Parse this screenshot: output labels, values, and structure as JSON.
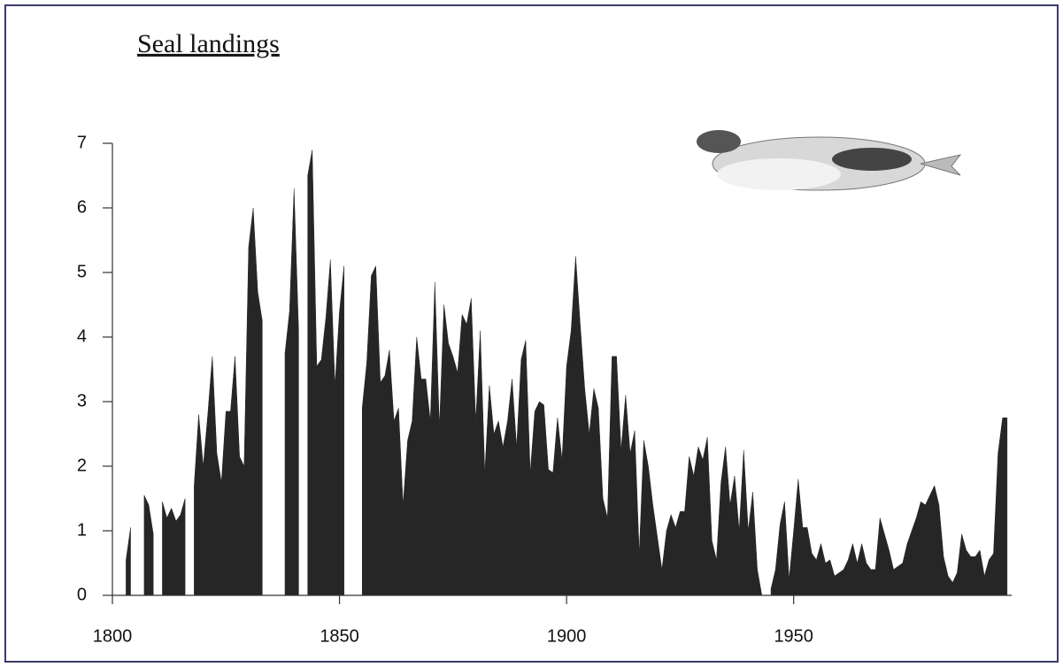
{
  "chart_data": {
    "type": "area",
    "title": "Seal landings",
    "x": [
      1803,
      1804,
      1805,
      1806,
      1807,
      1808,
      1809,
      1810,
      1811,
      1812,
      1813,
      1814,
      1815,
      1816,
      1817,
      1818,
      1819,
      1820,
      1821,
      1822,
      1823,
      1824,
      1825,
      1826,
      1827,
      1828,
      1829,
      1830,
      1831,
      1832,
      1833,
      1834,
      1835,
      1836,
      1837,
      1838,
      1839,
      1840,
      1841,
      1842,
      1843,
      1844,
      1845,
      1846,
      1847,
      1848,
      1849,
      1850,
      1851,
      1852,
      1853,
      1854,
      1855,
      1856,
      1857,
      1858,
      1859,
      1860,
      1861,
      1862,
      1863,
      1864,
      1865,
      1866,
      1867,
      1868,
      1869,
      1870,
      1871,
      1872,
      1873,
      1874,
      1875,
      1876,
      1877,
      1878,
      1879,
      1880,
      1881,
      1882,
      1883,
      1884,
      1885,
      1886,
      1887,
      1888,
      1889,
      1890,
      1891,
      1892,
      1893,
      1894,
      1895,
      1896,
      1897,
      1898,
      1899,
      1900,
      1901,
      1902,
      1903,
      1904,
      1905,
      1906,
      1907,
      1908,
      1909,
      1910,
      1911,
      1912,
      1913,
      1914,
      1915,
      1916,
      1917,
      1918,
      1919,
      1920,
      1921,
      1922,
      1923,
      1924,
      1925,
      1926,
      1927,
      1928,
      1929,
      1930,
      1931,
      1932,
      1933,
      1934,
      1935,
      1936,
      1937,
      1938,
      1939,
      1940,
      1941,
      1942,
      1943,
      1944,
      1945,
      1946,
      1947,
      1948,
      1949,
      1950,
      1951,
      1952,
      1953,
      1954,
      1955,
      1956,
      1957,
      1958,
      1959,
      1960,
      1961,
      1962,
      1963,
      1964,
      1965,
      1966,
      1967,
      1968,
      1969,
      1970,
      1971,
      1972,
      1973,
      1974,
      1975,
      1976,
      1977,
      1978,
      1979,
      1980,
      1981,
      1982,
      1983,
      1984,
      1985,
      1986,
      1987,
      1988,
      1989,
      1990,
      1991,
      1992,
      1993,
      1994,
      1995,
      1996,
      1997
    ],
    "values": [
      0.55,
      1.05,
      null,
      null,
      1.55,
      1.4,
      0.95,
      null,
      1.45,
      1.2,
      1.35,
      1.15,
      1.25,
      1.5,
      null,
      1.7,
      2.8,
      2.0,
      2.8,
      3.7,
      2.2,
      1.75,
      2.85,
      2.85,
      3.7,
      2.15,
      2.0,
      5.4,
      6.0,
      4.7,
      4.25,
      null,
      null,
      null,
      null,
      3.75,
      4.4,
      6.3,
      4.1,
      null,
      6.5,
      6.9,
      3.55,
      3.65,
      4.3,
      5.2,
      3.25,
      4.4,
      5.1,
      null,
      null,
      null,
      2.9,
      3.6,
      4.95,
      5.1,
      3.3,
      3.4,
      3.8,
      2.7,
      2.9,
      1.4,
      2.4,
      2.7,
      4.0,
      3.35,
      3.35,
      2.7,
      4.85,
      2.6,
      4.5,
      3.9,
      3.7,
      3.45,
      4.35,
      4.2,
      4.6,
      2.7,
      4.1,
      1.9,
      3.25,
      2.5,
      2.7,
      2.3,
      2.7,
      3.35,
      2.3,
      3.65,
      3.95,
      1.9,
      2.85,
      3.0,
      2.95,
      1.95,
      1.9,
      2.75,
      2.1,
      3.55,
      4.1,
      5.25,
      4.2,
      3.2,
      2.5,
      3.2,
      2.9,
      1.5,
      1.2,
      3.7,
      3.7,
      2.25,
      3.1,
      2.2,
      2.55,
      0.65,
      2.4,
      2.0,
      1.4,
      0.9,
      0.4,
      1.0,
      1.25,
      1.05,
      1.3,
      1.3,
      2.15,
      1.85,
      2.3,
      2.1,
      2.45,
      0.85,
      0.55,
      1.75,
      2.3,
      1.4,
      1.85,
      1.0,
      2.25,
      1.0,
      1.6,
      0.4,
      0,
      null,
      0.1,
      0.4,
      1.1,
      1.45,
      0.25,
      1.0,
      1.8,
      1.05,
      1.05,
      0.65,
      0.55,
      0.8,
      0.5,
      0.55,
      0.3,
      0.35,
      0.4,
      0.55,
      0.8,
      0.5,
      0.8,
      0.5,
      0.4,
      0.4,
      1.2,
      0.95,
      0.7,
      0.4,
      0.45,
      0.5,
      0.8,
      1.0,
      1.2,
      1.45,
      1.4,
      1.55,
      1.7,
      1.4,
      0.6,
      0.3,
      0.2,
      0.35,
      0.95,
      0.7,
      0.6,
      0.6,
      0.7,
      0.3,
      0.55,
      0.65,
      2.2,
      2.75,
      2.75
    ],
    "color": "#262626",
    "xlim": [
      1800,
      1998
    ],
    "xticks": [
      1800,
      1850,
      1900,
      1950
    ],
    "ylim": [
      0,
      7
    ],
    "yticks": [
      0,
      1,
      2,
      3,
      4,
      5,
      6,
      7
    ]
  }
}
